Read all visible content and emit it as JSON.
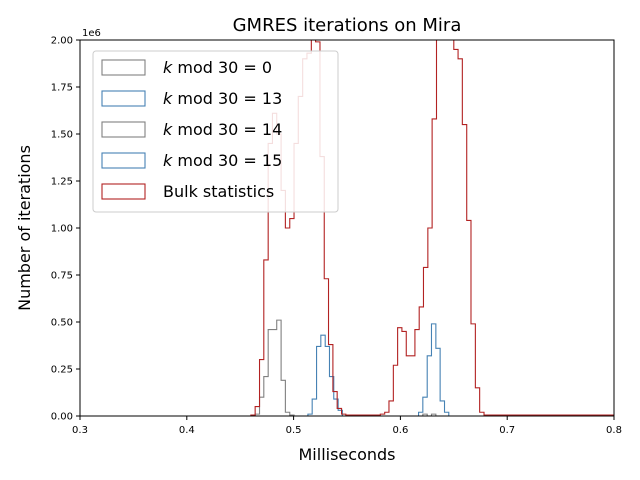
{
  "chart_data": {
    "type": "histogram-step",
    "title": "GMRES iterations on Mira",
    "xlabel": "Milliseconds",
    "ylabel": "Number of iterations",
    "y_offset_label": "1e6",
    "xlim": [
      0.3,
      0.8
    ],
    "ylim": [
      0,
      2000000
    ],
    "x_ticks": [
      "0.3",
      "0.4",
      "0.5",
      "0.6",
      "0.7",
      "0.8"
    ],
    "x_tick_values": [
      0.3,
      0.4,
      0.5,
      0.6,
      0.7,
      0.8
    ],
    "y_ticks": [
      "0.00",
      "0.25",
      "0.50",
      "0.75",
      "1.00",
      "1.25",
      "1.50",
      "1.75",
      "2.00"
    ],
    "y_tick_values": [
      0,
      250000,
      500000,
      750000,
      1000000,
      1250000,
      1500000,
      1750000,
      2000000
    ],
    "legend_position": "top-left",
    "series": [
      {
        "name": "k mod 30 = 0",
        "legend_prefix": "k",
        "legend_suffix": " mod 30 = 0",
        "color": "#808080",
        "bin_width": 0.00404,
        "points": [
          [
            0.46,
            0
          ],
          [
            0.464,
            10000
          ],
          [
            0.4681,
            100000
          ],
          [
            0.4721,
            210000
          ],
          [
            0.4762,
            460000
          ],
          [
            0.4802,
            460000
          ],
          [
            0.4842,
            510000
          ],
          [
            0.4883,
            190000
          ],
          [
            0.4923,
            20000
          ],
          [
            0.4964,
            5000
          ],
          [
            0.5004,
            0
          ]
        ]
      },
      {
        "name": "k mod 30 = 13",
        "legend_prefix": "k",
        "legend_suffix": " mod 30 = 13",
        "color": "#4682b4",
        "bin_width": 0.00404,
        "points": [
          [
            0.5134,
            10000
          ],
          [
            0.5174,
            90000
          ],
          [
            0.5215,
            370000
          ],
          [
            0.5255,
            430000
          ],
          [
            0.5296,
            370000
          ],
          [
            0.5336,
            210000
          ],
          [
            0.5376,
            90000
          ],
          [
            0.5417,
            30000
          ],
          [
            0.5457,
            0
          ]
        ]
      },
      {
        "name": "k mod 30 = 14",
        "legend_prefix": "k",
        "legend_suffix": " mod 30 = 14",
        "color": "#808080",
        "bin_width": 0.00404,
        "points": [
          [
            0.617,
            0
          ],
          [
            0.621,
            10000
          ],
          [
            0.6251,
            0
          ],
          [
            0.6291,
            10000
          ],
          [
            0.6332,
            0
          ]
        ]
      },
      {
        "name": "k mod 30 = 15",
        "legend_prefix": "k",
        "legend_suffix": " mod 30 = 15",
        "color": "#4682b4",
        "bin_width": 0.00404,
        "points": [
          [
            0.617,
            20000
          ],
          [
            0.621,
            100000
          ],
          [
            0.6251,
            320000
          ],
          [
            0.6291,
            490000
          ],
          [
            0.6332,
            360000
          ],
          [
            0.6372,
            80000
          ],
          [
            0.6413,
            20000
          ],
          [
            0.6453,
            0
          ]
        ]
      },
      {
        "name": "Bulk statistics",
        "legend_prefix": "",
        "legend_suffix": "Bulk statistics",
        "color": "#b22222",
        "bin_width": 0.00404,
        "points": [
          [
            0.46,
            5000
          ],
          [
            0.464,
            50000
          ],
          [
            0.4681,
            300000
          ],
          [
            0.4721,
            830000
          ],
          [
            0.4762,
            1450000
          ],
          [
            0.4802,
            1610000
          ],
          [
            0.4842,
            1500000
          ],
          [
            0.4883,
            1200000
          ],
          [
            0.4923,
            1000000
          ],
          [
            0.4964,
            1050000
          ],
          [
            0.5004,
            1450000
          ],
          [
            0.5044,
            1700000
          ],
          [
            0.5085,
            1900000
          ],
          [
            0.5125,
            1930000
          ],
          [
            0.5166,
            2050000
          ],
          [
            0.5206,
            1990000
          ],
          [
            0.5247,
            1380000
          ],
          [
            0.5287,
            730000
          ],
          [
            0.5327,
            380000
          ],
          [
            0.5368,
            130000
          ],
          [
            0.5408,
            40000
          ],
          [
            0.5449,
            10000
          ],
          [
            0.5489,
            5000
          ],
          [
            0.5529,
            5000
          ],
          [
            0.557,
            5000
          ],
          [
            0.561,
            5000
          ],
          [
            0.5651,
            5000
          ],
          [
            0.5691,
            5000
          ],
          [
            0.5731,
            5000
          ],
          [
            0.5772,
            5000
          ],
          [
            0.5812,
            10000
          ],
          [
            0.5853,
            20000
          ],
          [
            0.5893,
            80000
          ],
          [
            0.5934,
            270000
          ],
          [
            0.5974,
            470000
          ],
          [
            0.6014,
            450000
          ],
          [
            0.6055,
            320000
          ],
          [
            0.6095,
            320000
          ],
          [
            0.6136,
            460000
          ],
          [
            0.6176,
            580000
          ],
          [
            0.6216,
            790000
          ],
          [
            0.6257,
            1000000
          ],
          [
            0.6297,
            1580000
          ],
          [
            0.6338,
            2000000
          ],
          [
            0.6378,
            2100000
          ],
          [
            0.6419,
            2050000
          ],
          [
            0.6459,
            2010000
          ],
          [
            0.65,
            1950000
          ],
          [
            0.654,
            1900000
          ],
          [
            0.658,
            1550000
          ],
          [
            0.6621,
            1040000
          ],
          [
            0.6661,
            490000
          ],
          [
            0.6702,
            150000
          ],
          [
            0.6742,
            20000
          ],
          [
            0.6783,
            5000
          ],
          [
            0.6823,
            5000
          ],
          [
            0.6863,
            5000
          ],
          [
            0.6904,
            5000
          ],
          [
            0.6944,
            5000
          ],
          [
            0.6985,
            5000
          ],
          [
            0.7025,
            5000
          ],
          [
            0.8,
            5000
          ]
        ]
      }
    ]
  }
}
